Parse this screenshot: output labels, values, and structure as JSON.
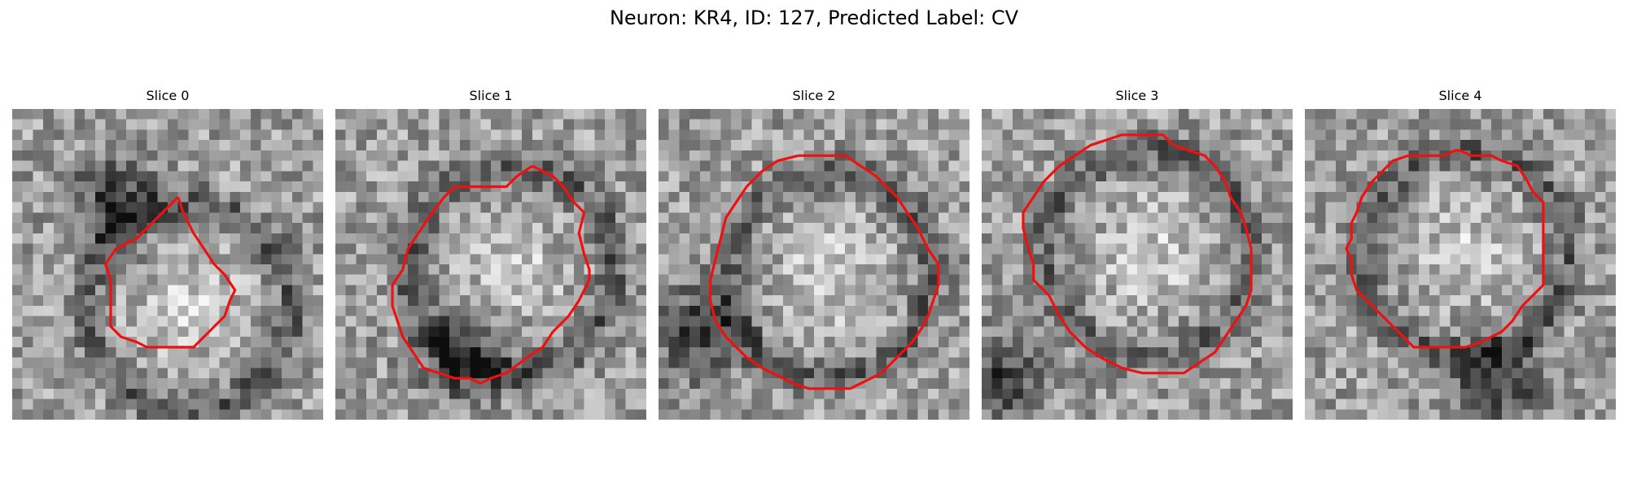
{
  "figure": {
    "title": "Neuron: KR4, ID: 127, Predicted Label: CV",
    "contour_color": "#ee1111",
    "colormap": "grayscale",
    "panels": [
      {
        "title": "Slice 0",
        "seed": 11,
        "dark_center": [
          0.32,
          0.28
        ],
        "bright_center": [
          0.55,
          0.62
        ],
        "contour_shape": "irregular-blob"
      },
      {
        "title": "Slice 1",
        "seed": 23,
        "dark_center": [
          0.4,
          0.78
        ],
        "bright_center": [
          0.55,
          0.5
        ],
        "contour_shape": "octagon"
      },
      {
        "title": "Slice 2",
        "seed": 37,
        "dark_center": [
          0.1,
          0.7
        ],
        "bright_center": [
          0.53,
          0.52
        ],
        "contour_shape": "circle"
      },
      {
        "title": "Slice 3",
        "seed": 41,
        "dark_center": [
          0.05,
          0.85
        ],
        "bright_center": [
          0.52,
          0.45
        ],
        "contour_shape": "octagon"
      },
      {
        "title": "Slice 4",
        "seed": 53,
        "dark_center": [
          0.6,
          0.88
        ],
        "bright_center": [
          0.5,
          0.45
        ],
        "contour_shape": "octagon"
      }
    ]
  }
}
